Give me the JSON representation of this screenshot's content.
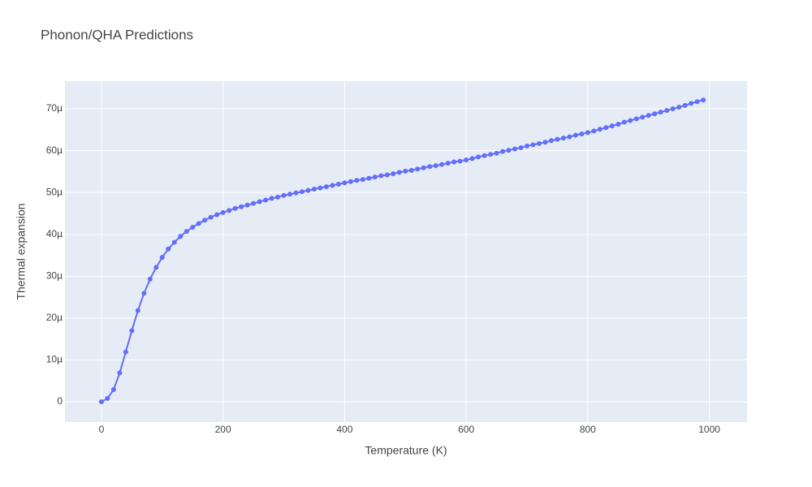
{
  "chart_data": {
    "type": "line",
    "title": "Phonon/QHA Predictions",
    "x_label": "Temperature (K)",
    "y_label": "Thermal expansion",
    "color": "#636efa",
    "grid": true,
    "x": [
      0,
      10,
      20,
      30,
      40,
      50,
      60,
      70,
      80,
      90,
      100,
      110,
      120,
      130,
      140,
      150,
      160,
      170,
      180,
      190,
      200,
      210,
      220,
      230,
      240,
      250,
      260,
      270,
      280,
      290,
      300,
      310,
      320,
      330,
      340,
      350,
      360,
      370,
      380,
      390,
      400,
      410,
      420,
      430,
      440,
      450,
      460,
      470,
      480,
      490,
      500,
      510,
      520,
      530,
      540,
      550,
      560,
      570,
      580,
      590,
      600,
      610,
      620,
      630,
      640,
      650,
      660,
      670,
      680,
      690,
      700,
      710,
      720,
      730,
      740,
      750,
      760,
      770,
      780,
      790,
      800,
      810,
      820,
      830,
      840,
      850,
      860,
      870,
      880,
      890,
      900,
      910,
      920,
      930,
      940,
      950,
      960,
      970,
      980,
      990
    ],
    "values": [
      0,
      8e-07,
      2.9e-06,
      6.9e-06,
      1.19e-05,
      1.7e-05,
      2.18e-05,
      2.59e-05,
      2.93e-05,
      3.21e-05,
      3.45e-05,
      3.65e-05,
      3.81e-05,
      3.95e-05,
      4.07e-05,
      4.17e-05,
      4.26e-05,
      4.34e-05,
      4.41e-05,
      4.47e-05,
      4.52e-05,
      4.57e-05,
      4.62e-05,
      4.66e-05,
      4.7e-05,
      4.74e-05,
      4.78e-05,
      4.82e-05,
      4.86e-05,
      4.89e-05,
      4.93e-05,
      4.96e-05,
      4.99e-05,
      5.02e-05,
      5.05e-05,
      5.08e-05,
      5.11e-05,
      5.14e-05,
      5.17e-05,
      5.2e-05,
      5.23e-05,
      5.26e-05,
      5.29e-05,
      5.31e-05,
      5.34e-05,
      5.37e-05,
      5.4e-05,
      5.42e-05,
      5.45e-05,
      5.48e-05,
      5.51e-05,
      5.53e-05,
      5.56e-05,
      5.59e-05,
      5.62e-05,
      5.64e-05,
      5.67e-05,
      5.7e-05,
      5.73e-05,
      5.75e-05,
      5.78e-05,
      5.81e-05,
      5.85e-05,
      5.88e-05,
      5.91e-05,
      5.94e-05,
      5.98e-05,
      6.01e-05,
      6.04e-05,
      6.07e-05,
      6.11e-05,
      6.14e-05,
      6.17e-05,
      6.2e-05,
      6.24e-05,
      6.27e-05,
      6.3e-05,
      6.33e-05,
      6.37e-05,
      6.4e-05,
      6.43e-05,
      6.47e-05,
      6.51e-05,
      6.55e-05,
      6.59e-05,
      6.63e-05,
      6.68e-05,
      6.72e-05,
      6.76e-05,
      6.8e-05,
      6.84e-05,
      6.88e-05,
      6.92e-05,
      6.96e-05,
      7e-05,
      7.04e-05,
      7.08e-05,
      7.13e-05,
      7.17e-05,
      7.21e-05
    ],
    "xlim": [
      -60,
      1062
    ],
    "ylim": [
      -4.85e-06,
      7.66e-05
    ],
    "xticks": [
      0,
      200,
      400,
      600,
      800,
      1000
    ],
    "yticks": [
      0,
      {
        "value": 1e-05,
        "label": "10µ"
      },
      {
        "value": 2e-05,
        "label": "20µ"
      },
      {
        "value": 3e-05,
        "label": "30µ"
      },
      {
        "value": 4e-05,
        "label": "40µ"
      },
      {
        "value": 5e-05,
        "label": "50µ"
      },
      {
        "value": 6e-05,
        "label": "60µ"
      },
      {
        "value": 7e-05,
        "label": "70µ"
      }
    ]
  }
}
